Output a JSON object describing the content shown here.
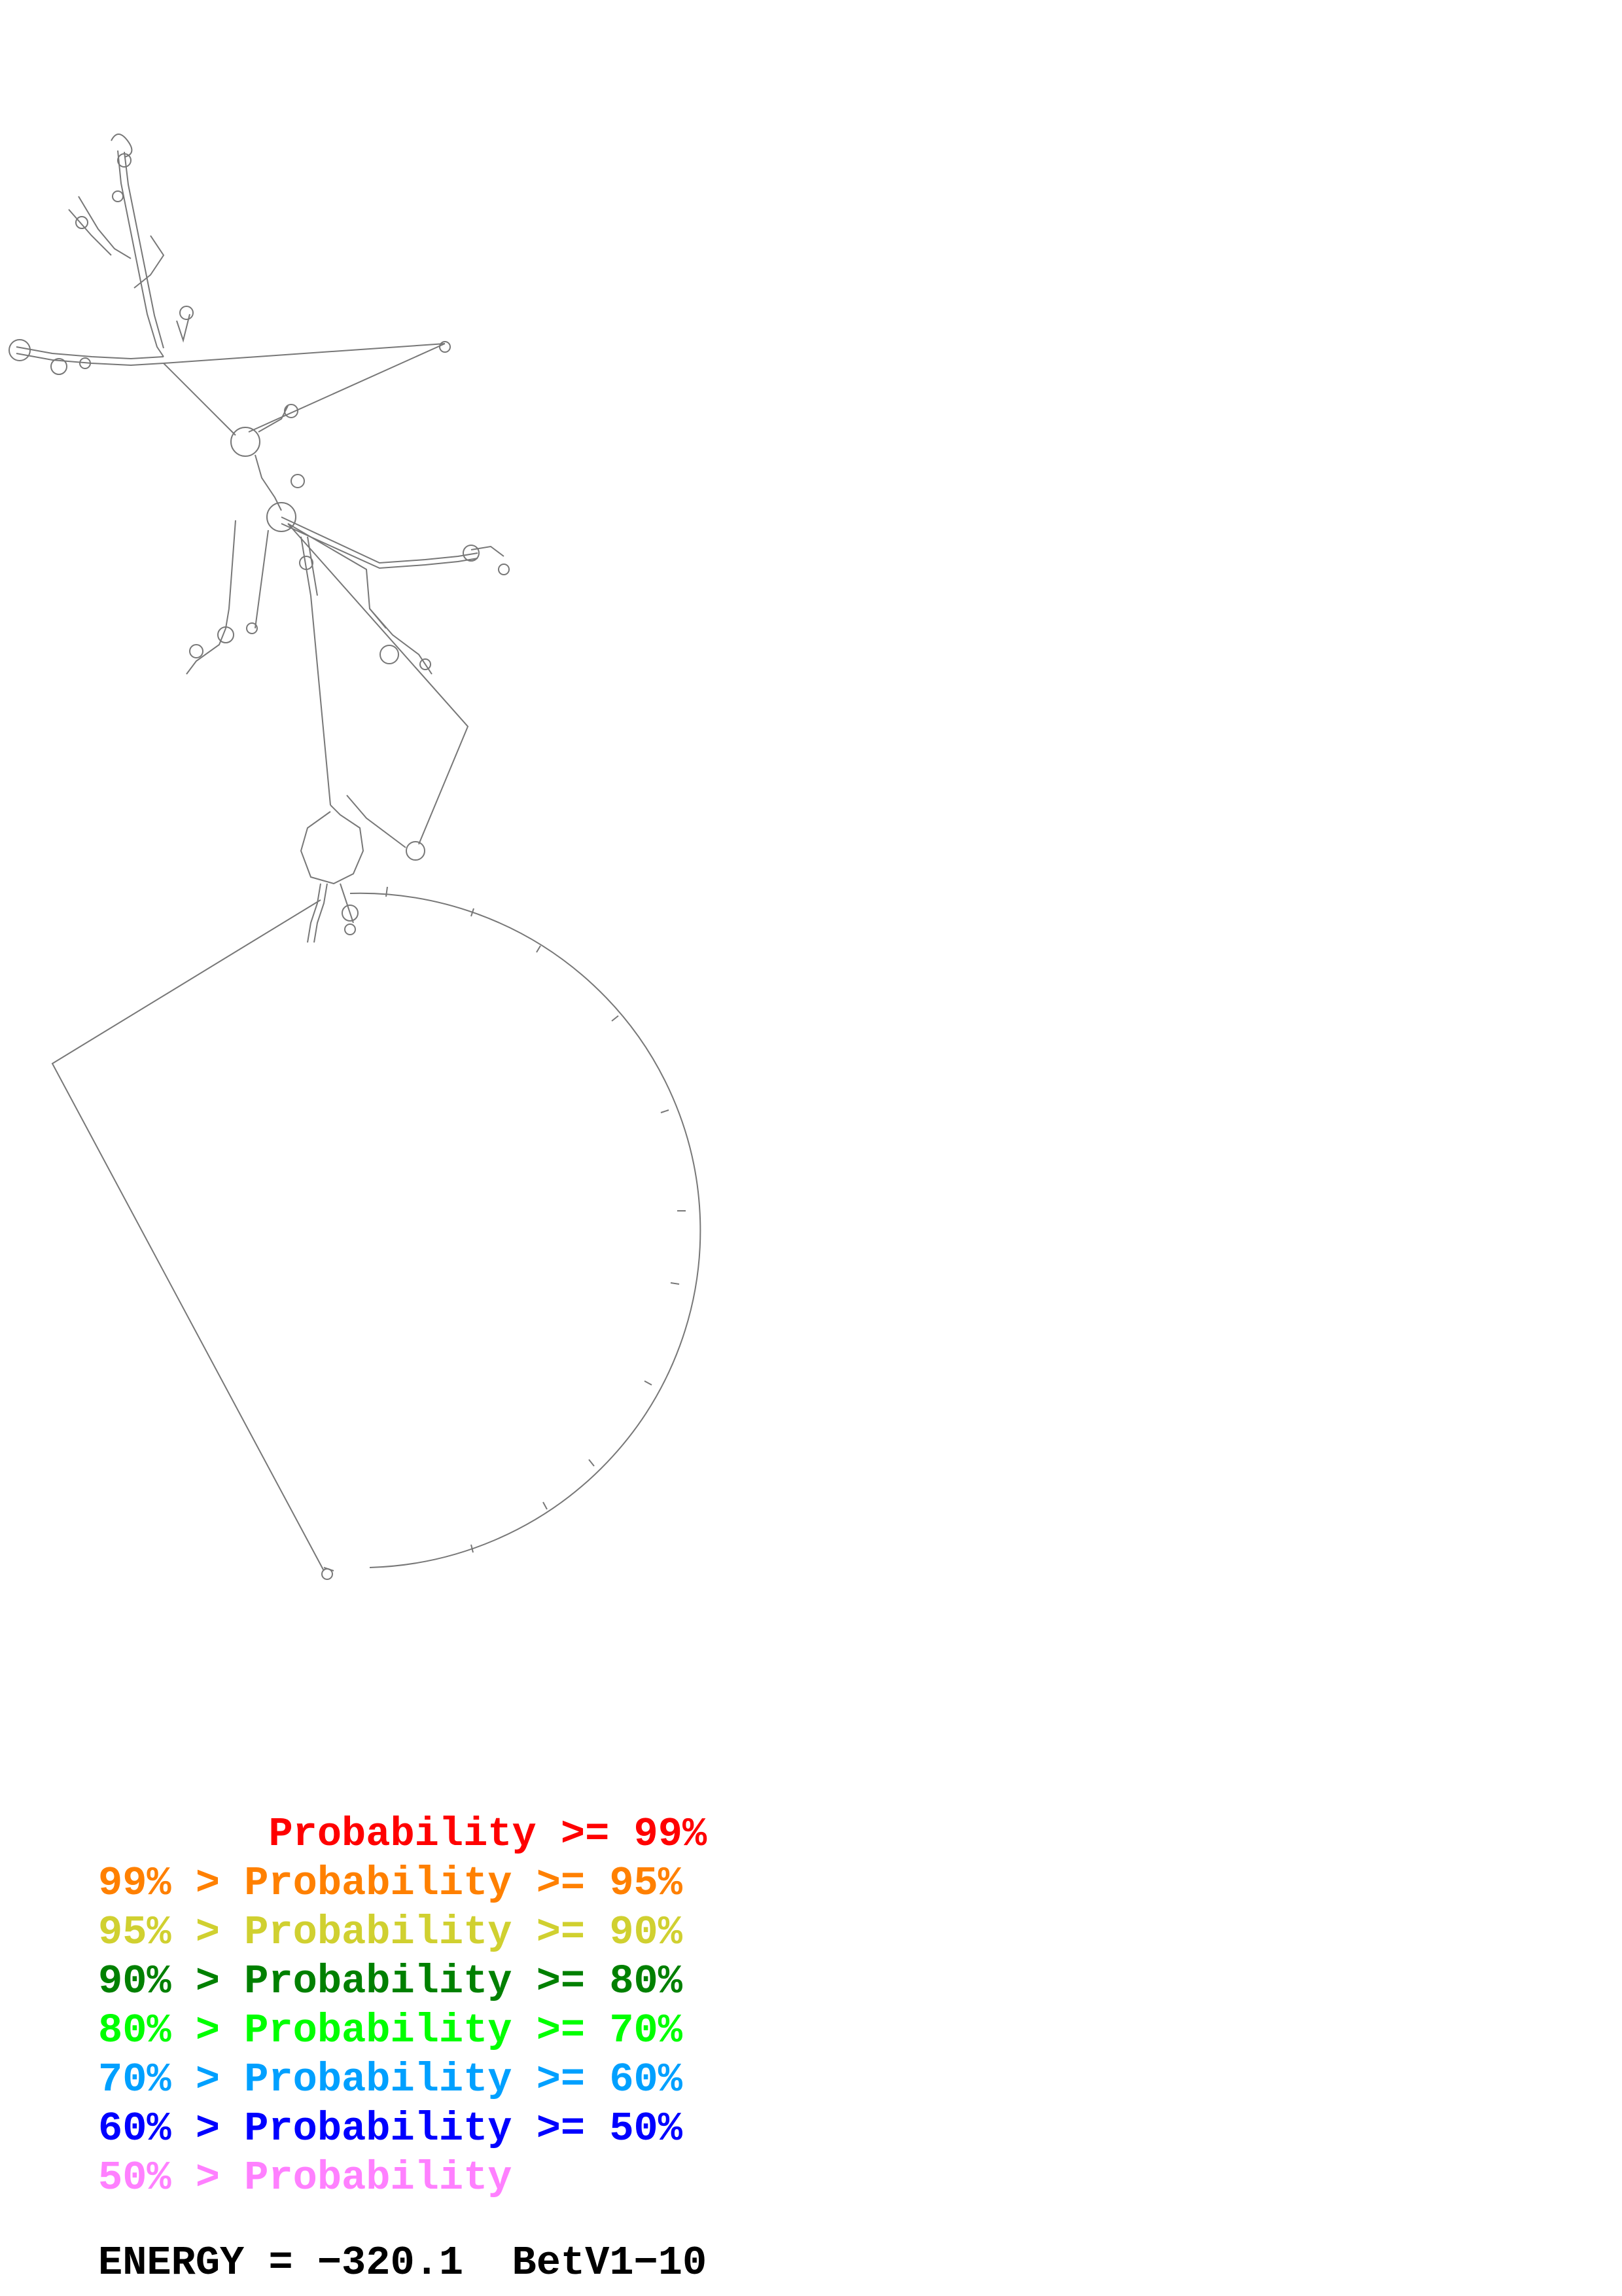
{
  "legend": [
    {
      "text": "       Probability >= 99%",
      "color": "#ff0000"
    },
    {
      "text": "99% > Probability >= 95%",
      "color": "#ff8000"
    },
    {
      "text": "95% > Probability >= 90%",
      "color": "#d0d030"
    },
    {
      "text": "90% > Probability >= 80%",
      "color": "#008000"
    },
    {
      "text": "80% > Probability >= 70%",
      "color": "#00ff00"
    },
    {
      "text": "70% > Probability >= 60%",
      "color": "#00a0ff"
    },
    {
      "text": "60% > Probability >= 50%",
      "color": "#0000ff"
    },
    {
      "text": "50% > Probability",
      "color": "#ff80ff"
    }
  ],
  "energy": {
    "text": "ENERGY = −320.1  BetV1−10"
  },
  "colors": {
    "backbone": "#777777",
    "background": "#ffffff"
  }
}
